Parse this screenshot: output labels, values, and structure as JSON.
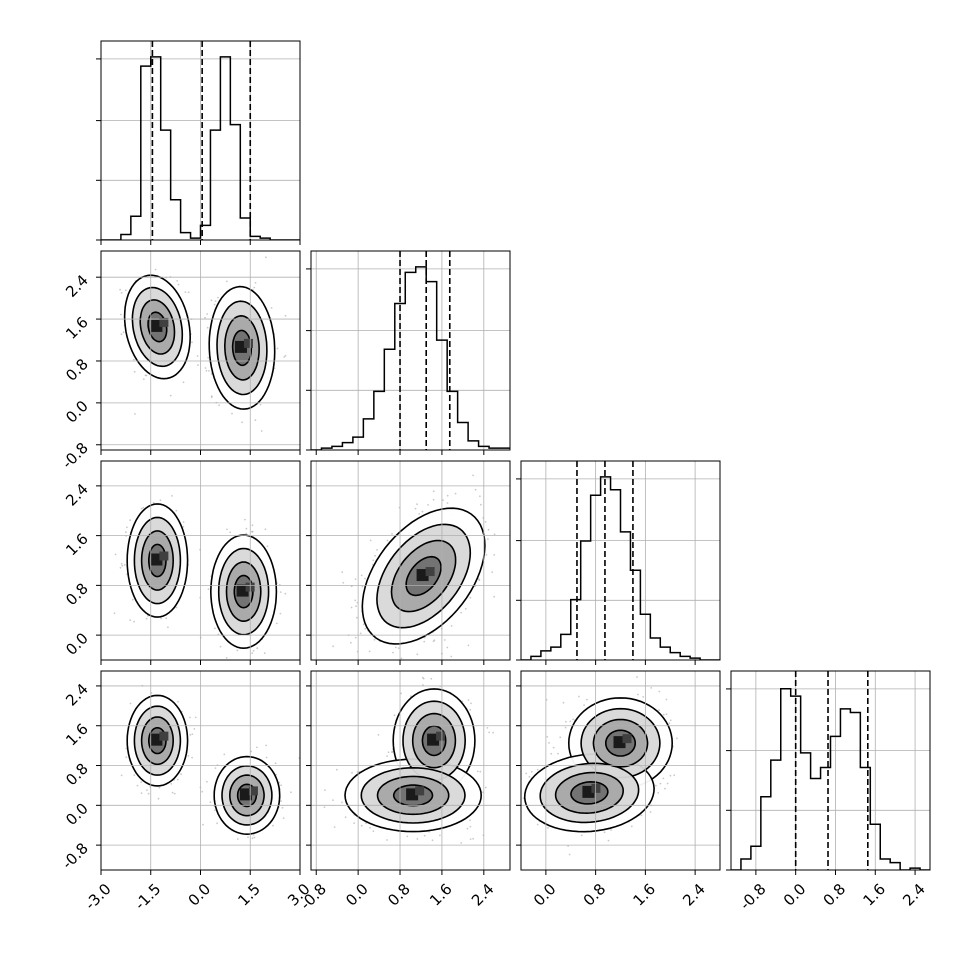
{
  "chart_data": {
    "type": "corner",
    "title": "",
    "parameters": [
      "",
      "",
      "",
      ""
    ],
    "grid": true,
    "x_ticks": [
      [
        "-3.0",
        "-1.5",
        "0.0",
        "1.5",
        "3.0"
      ],
      [
        "-0.8",
        "0.0",
        "0.8",
        "1.6",
        "2.4"
      ],
      [
        "0.0",
        "0.8",
        "1.6",
        "2.4"
      ],
      [
        "-0.8",
        "0.0",
        "0.8",
        "1.6",
        "2.4"
      ]
    ],
    "y_ticks": [
      [],
      [
        "-0.8",
        "0.0",
        "0.8",
        "1.6",
        "2.4"
      ],
      [
        "0.0",
        "0.8",
        "1.6",
        "2.4"
      ],
      [
        "-0.8",
        "0.0",
        "0.8",
        "1.6",
        "2.4"
      ]
    ],
    "ranges": [
      [
        -3.0,
        3.0
      ],
      [
        -0.9,
        2.9
      ],
      [
        -0.4,
        2.8
      ],
      [
        -1.3,
        2.7
      ]
    ],
    "quantiles": [
      [
        -1.45,
        0.05,
        1.5
      ],
      [
        0.8,
        1.3,
        1.75
      ],
      [
        0.5,
        0.95,
        1.4
      ],
      [
        0.0,
        0.65,
        1.45
      ]
    ],
    "marginal_histograms": [
      {
        "bin_start": -3.0,
        "bin_width": 0.3,
        "counts": [
          0,
          0,
          0.03,
          0.13,
          0.95,
          1.0,
          0.6,
          0.22,
          0.04,
          0.01,
          0.08,
          0.6,
          1.0,
          0.63,
          0.12,
          0.02,
          0.01,
          0,
          0,
          0
        ]
      },
      {
        "bin_start": -0.9,
        "bin_width": 0.2,
        "counts": [
          0,
          0.01,
          0.02,
          0.04,
          0.07,
          0.17,
          0.32,
          0.55,
          0.8,
          0.97,
          1.0,
          0.92,
          0.6,
          0.32,
          0.15,
          0.05,
          0.02,
          0.01,
          0.01
        ]
      },
      {
        "bin_start": -0.4,
        "bin_width": 0.16,
        "counts": [
          0,
          0.02,
          0.05,
          0.07,
          0.14,
          0.33,
          0.65,
          0.9,
          1.0,
          0.93,
          0.7,
          0.49,
          0.25,
          0.12,
          0.07,
          0.04,
          0.02,
          0.01,
          0,
          0
        ]
      },
      {
        "bin_start": -1.3,
        "bin_width": 0.2,
        "counts": [
          0,
          0.06,
          0.13,
          0.4,
          0.6,
          0.99,
          0.95,
          0.64,
          0.5,
          0.56,
          0.73,
          0.88,
          0.86,
          0.56,
          0.25,
          0.06,
          0.04,
          0,
          0.01,
          0
        ]
      }
    ],
    "joint_modes": [
      {
        "x_param": 0,
        "y_param": 1,
        "modes": [
          {
            "mx": -1.3,
            "my": 1.45,
            "sx": 0.38,
            "sy": 0.38,
            "rho": -0.2,
            "w": 0.5
          },
          {
            "mx": 1.25,
            "my": 1.05,
            "sx": 0.38,
            "sy": 0.45,
            "rho": -0.05,
            "w": 0.5
          }
        ]
      },
      {
        "x_param": 0,
        "y_param": 2,
        "modes": [
          {
            "mx": -1.3,
            "my": 1.2,
            "sx": 0.35,
            "sy": 0.35,
            "rho": 0.0,
            "w": 0.5
          },
          {
            "mx": 1.3,
            "my": 0.7,
            "sx": 0.38,
            "sy": 0.35,
            "rho": 0.0,
            "w": 0.5
          }
        ]
      },
      {
        "x_param": 0,
        "y_param": 3,
        "modes": [
          {
            "mx": -1.3,
            "my": 1.3,
            "sx": 0.35,
            "sy": 0.35,
            "rho": 0.0,
            "w": 0.5
          },
          {
            "mx": 1.4,
            "my": 0.2,
            "sx": 0.38,
            "sy": 0.3,
            "rho": 0.0,
            "w": 0.5
          }
        ]
      },
      {
        "x_param": 1,
        "y_param": 2,
        "modes": [
          {
            "mx": 1.25,
            "my": 0.95,
            "sx": 0.45,
            "sy": 0.42,
            "rho": 0.45,
            "w": 1.0
          }
        ]
      },
      {
        "x_param": 1,
        "y_param": 3,
        "modes": [
          {
            "mx": 1.45,
            "my": 1.3,
            "sx": 0.3,
            "sy": 0.4,
            "rho": 0.0,
            "w": 0.5
          },
          {
            "mx": 1.05,
            "my": 0.2,
            "sx": 0.5,
            "sy": 0.28,
            "rho": 0.0,
            "w": 0.5
          }
        ]
      },
      {
        "x_param": 2,
        "y_param": 3,
        "modes": [
          {
            "mx": 1.2,
            "my": 1.25,
            "sx": 0.32,
            "sy": 0.35,
            "rho": 0.0,
            "w": 0.5
          },
          {
            "mx": 0.7,
            "my": 0.25,
            "sx": 0.4,
            "sy": 0.3,
            "rho": 0.1,
            "w": 0.5
          }
        ]
      }
    ],
    "contour_levels": [
      0.4,
      0.8,
      1.5,
      2.1
    ]
  }
}
